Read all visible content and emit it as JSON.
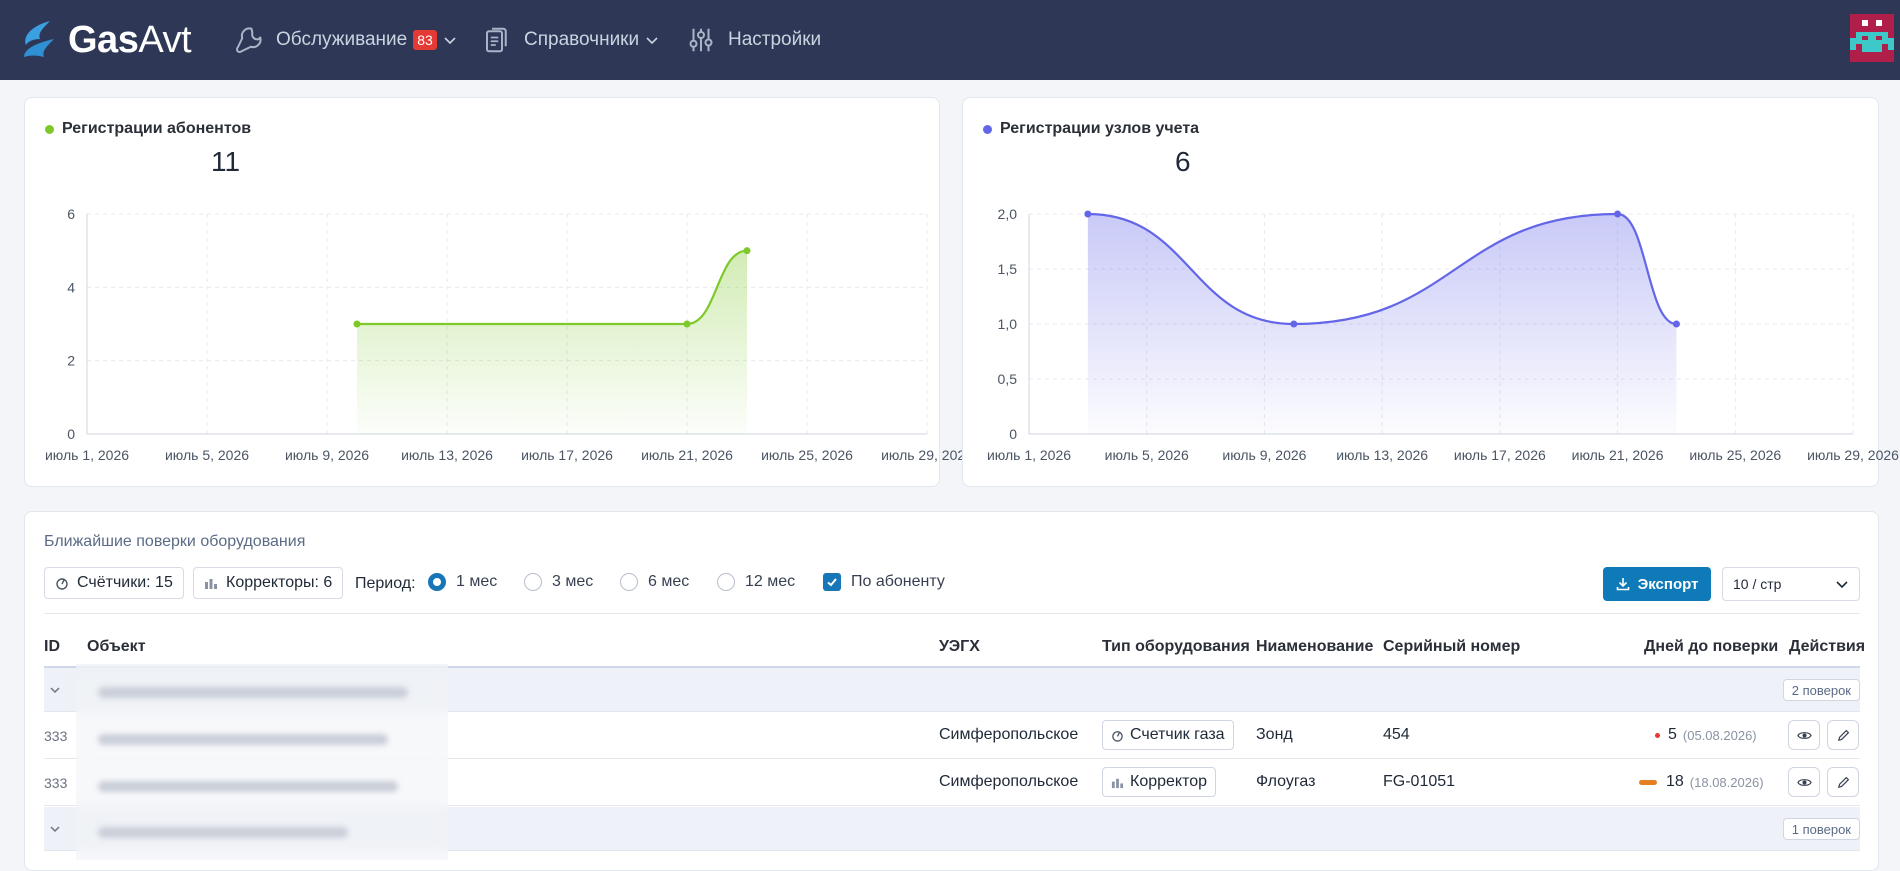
{
  "nav": {
    "logo_bold": "Gas",
    "logo_thin": "Avt",
    "items": [
      {
        "label": "Обслуживание",
        "badge": "83",
        "icon": "wrench-icon"
      },
      {
        "label": "Справочники",
        "icon": "documents-icon"
      },
      {
        "label": "Настройки",
        "icon": "sliders-icon"
      }
    ]
  },
  "charts": [
    {
      "title": "Регистрации абонентов",
      "total": "11",
      "color": "#7ec82a",
      "chart_data": {
        "type": "area",
        "x": [
          "2026-07-10",
          "2026-07-21",
          "2026-07-23"
        ],
        "y": [
          3,
          3,
          5
        ],
        "yticks": [
          "0",
          "2",
          "4",
          "6"
        ],
        "ylim": [
          0,
          6
        ],
        "xtick_labels": [
          "июль 1, 2026",
          "июль 5, 2026",
          "июль 9, 2026",
          "июль 13, 2026",
          "июль 17, 2026",
          "июль 21, 2026",
          "июль 25, 2026",
          "июль 29, 2026"
        ],
        "grid": true
      }
    },
    {
      "title": "Регистрации узлов учета",
      "total": "6",
      "color": "#6366e8",
      "chart_data": {
        "type": "area",
        "x": [
          "2026-07-03",
          "2026-07-10",
          "2026-07-21",
          "2026-07-23"
        ],
        "y": [
          2,
          1,
          2,
          1
        ],
        "yticks": [
          "0",
          "0,5",
          "1,0",
          "1,5",
          "2,0"
        ],
        "ylim": [
          0,
          2
        ],
        "xtick_labels": [
          "июль 1, 2026",
          "июль 5, 2026",
          "июль 9, 2026",
          "июль 13, 2026",
          "июль 17, 2026",
          "июль 21, 2026",
          "июль 25, 2026",
          "июль 29, 2026"
        ],
        "grid": true
      }
    }
  ],
  "inspections": {
    "title": "Ближайшие поверки оборудования",
    "counters_chip": "Счётчики: 15",
    "correctors_chip": "Корректоры: 6",
    "period_label": "Период:",
    "periods": [
      {
        "label": "1 мес",
        "selected": true
      },
      {
        "label": "3 мес",
        "selected": false
      },
      {
        "label": "6 мес",
        "selected": false
      },
      {
        "label": "12 мес",
        "selected": false
      }
    ],
    "by_subscriber_label": "По абоненту",
    "by_subscriber_checked": true,
    "export_label": "Экспорт",
    "per_page": "10 / стр",
    "columns": {
      "id": "ID",
      "object": "Объект",
      "uegh": "УЭГХ",
      "type": "Тип оборудования",
      "name": "Ниаменование",
      "serial": "Серийный номер",
      "days": "Дней до поверки",
      "actions": "Действия"
    },
    "group1_count": "2 поверок",
    "group2_count": "1 поверок",
    "rows": [
      {
        "id": "333",
        "uegh": "Симферопольское",
        "type": "Счетчик газа",
        "name": "Зонд",
        "serial": "454",
        "days": "5",
        "date": "(05.08.2026)",
        "status_color": "#e53935"
      },
      {
        "id": "333",
        "uegh": "Симферопольское",
        "type": "Корректор",
        "name": "Флоугаз",
        "serial": "FG-01051",
        "days": "18",
        "date": "(18.08.2026)",
        "status_color": "#e67e22"
      }
    ]
  }
}
